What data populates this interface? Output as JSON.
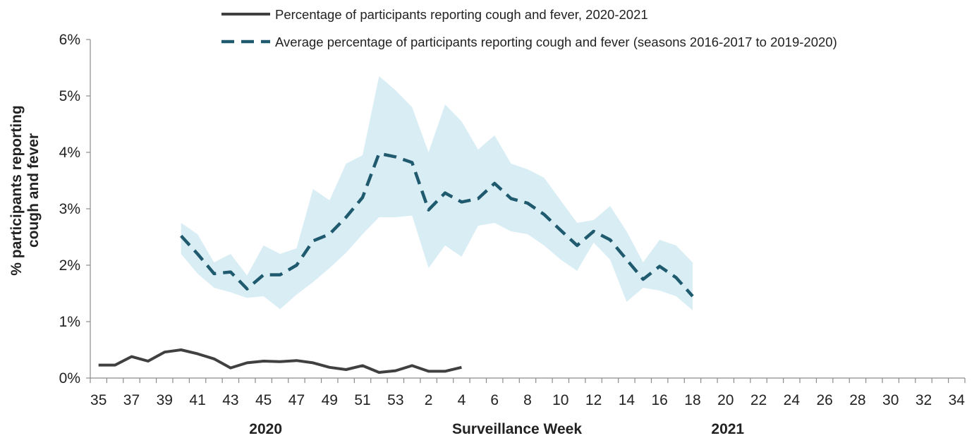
{
  "chart_data": {
    "type": "line",
    "xlabel": "Surveillance  Week",
    "ylabel_lines": [
      "% participants reporting",
      "cough and fever"
    ],
    "year_labels": [
      {
        "text": "2020",
        "at_week": "45"
      },
      {
        "text": "2021",
        "at_week": "20"
      }
    ],
    "x_categories": [
      "35",
      "36",
      "37",
      "38",
      "39",
      "40",
      "41",
      "42",
      "43",
      "44",
      "45",
      "46",
      "47",
      "48",
      "49",
      "50",
      "51",
      "52",
      "53",
      "1",
      "2",
      "3",
      "4",
      "5",
      "6",
      "7",
      "8",
      "9",
      "10",
      "11",
      "12",
      "13",
      "14",
      "15",
      "16",
      "17",
      "18",
      "19",
      "20",
      "21",
      "22",
      "23",
      "24",
      "25",
      "26",
      "27",
      "28",
      "29",
      "30",
      "31",
      "32",
      "33",
      "34"
    ],
    "x_tick_labels": [
      "35",
      "37",
      "39",
      "41",
      "43",
      "45",
      "47",
      "49",
      "51",
      "53",
      "2",
      "4",
      "6",
      "8",
      "10",
      "12",
      "14",
      "16",
      "18",
      "20",
      "22",
      "24",
      "26",
      "28",
      "30",
      "32",
      "34"
    ],
    "ylim": [
      0,
      6
    ],
    "y_ticks": [
      0,
      1,
      2,
      3,
      4,
      5,
      6
    ],
    "y_tick_labels": [
      "0%",
      "1%",
      "2%",
      "3%",
      "4%",
      "5%",
      "6%"
    ],
    "legend_position": "top",
    "series": [
      {
        "name": "Percentage of participants reporting cough and fever, 2020-2021",
        "style": "solid",
        "color": "#404040",
        "start_week": "35",
        "values": [
          0.23,
          0.23,
          0.38,
          0.3,
          0.46,
          0.5,
          0.43,
          0.34,
          0.18,
          0.27,
          0.3,
          0.29,
          0.31,
          0.27,
          0.19,
          0.15,
          0.22,
          0.1,
          0.13,
          0.22,
          0.12,
          0.12,
          0.19
        ]
      },
      {
        "name": "Average percentage of participants reporting cough and fever (seasons 2016-2017 to 2019-2020)",
        "style": "dashed",
        "color": "#1f5a6e",
        "start_week": "40",
        "values": [
          2.52,
          2.2,
          1.85,
          1.88,
          1.58,
          1.83,
          1.83,
          2.0,
          2.43,
          2.55,
          2.85,
          3.2,
          3.98,
          3.92,
          3.82,
          2.98,
          3.28,
          3.12,
          3.18,
          3.45,
          3.18,
          3.1,
          2.9,
          2.62,
          2.35,
          2.6,
          2.45,
          2.1,
          1.75,
          1.98,
          1.78,
          1.45
        ]
      }
    ],
    "band": {
      "color": "#d9edf5",
      "start_week": "40",
      "upper": [
        2.75,
        2.55,
        2.05,
        2.2,
        1.82,
        2.35,
        2.2,
        2.3,
        3.35,
        3.15,
        3.8,
        3.95,
        5.35,
        5.1,
        4.8,
        4.0,
        4.85,
        4.55,
        4.05,
        4.3,
        3.8,
        3.7,
        3.55,
        3.15,
        2.75,
        2.8,
        3.05,
        2.6,
        2.05,
        2.45,
        2.35,
        2.05
      ],
      "lower": [
        2.2,
        1.85,
        1.6,
        1.52,
        1.42,
        1.45,
        1.22,
        1.48,
        1.7,
        1.95,
        2.22,
        2.55,
        2.85,
        2.85,
        2.88,
        1.95,
        2.35,
        2.15,
        2.7,
        2.75,
        2.6,
        2.55,
        2.35,
        2.1,
        1.9,
        2.4,
        2.1,
        1.35,
        1.6,
        1.55,
        1.45,
        1.2
      ]
    }
  }
}
